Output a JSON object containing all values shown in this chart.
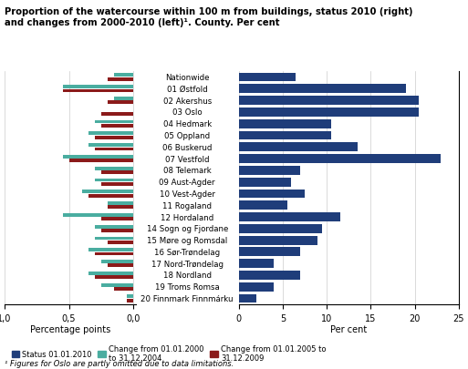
{
  "title": "Proportion of the watercourse within 100 m from buildings, status 2010 (right)\nand changes from 2000-2010 (left)¹. County. Per cent",
  "footnote": "¹ Figures for Oslo are partly omitted due to data limitations.",
  "categories": [
    "Nationwide",
    "01 Østfold",
    "02 Akershus",
    "03 Oslo",
    "04 Hedmark",
    "05 Oppland",
    "06 Buskerud",
    "07 Vestfold",
    "08 Telemark",
    "09 Aust-Agder",
    "10 Vest-Agder",
    "11 Rogaland",
    "12 Hordaland",
    "14 Sogn og Fjordane",
    "15 Møre og Romsdal",
    "16 Sør-Trøndelag",
    "17 Nord-Trøndelag",
    "18 Nordland",
    "19 Troms Romsa",
    "20 Finnmark Finnmárku"
  ],
  "status_2010": [
    6.5,
    19.0,
    20.5,
    20.5,
    10.5,
    10.5,
    13.5,
    23.0,
    7.0,
    6.0,
    7.5,
    5.5,
    11.5,
    9.5,
    9.0,
    7.0,
    4.0,
    7.0,
    4.0,
    2.0
  ],
  "change_2000_2004": [
    -0.15,
    -0.55,
    -0.15,
    0.0,
    -0.3,
    -0.35,
    -0.35,
    -0.55,
    -0.3,
    -0.3,
    -0.4,
    -0.2,
    -0.55,
    -0.3,
    -0.3,
    -0.35,
    -0.25,
    -0.35,
    -0.25,
    -0.05
  ],
  "change_2005_2009": [
    -0.2,
    -0.55,
    -0.2,
    -0.25,
    -0.25,
    -0.3,
    -0.3,
    -0.5,
    -0.25,
    -0.25,
    -0.35,
    -0.2,
    -0.25,
    -0.25,
    -0.2,
    -0.3,
    -0.2,
    -0.3,
    -0.15,
    -0.05
  ],
  "color_status": "#1F3D7A",
  "color_change_2000": "#4AADA0",
  "color_change_2005": "#8B1A1A",
  "right_xticks": [
    0,
    5,
    10,
    15,
    20,
    25
  ],
  "left_xlabel": "Percentage points",
  "right_xlabel": "Per cent",
  "legend_status": "Status 01.01.2010",
  "legend_change_2000": "Change from 01.01.2000\nto 31.12.2004",
  "legend_change_2005": "Change from 01.01.2005 to\n31.12.2009"
}
